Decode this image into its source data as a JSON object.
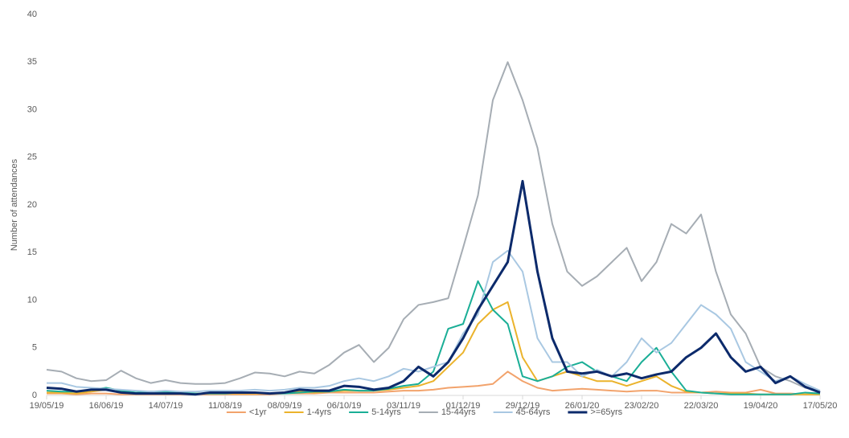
{
  "chart_data": {
    "type": "line",
    "y_label": "Number of attendances",
    "x": [
      "19/05/19",
      "26/05/19",
      "02/06/19",
      "09/06/19",
      "16/06/19",
      "23/06/19",
      "30/06/19",
      "07/07/19",
      "14/07/19",
      "21/07/19",
      "28/07/19",
      "04/08/19",
      "11/08/19",
      "18/08/19",
      "25/08/19",
      "01/09/19",
      "08/09/19",
      "15/09/19",
      "22/09/19",
      "29/09/19",
      "06/10/19",
      "13/10/19",
      "20/10/19",
      "27/10/19",
      "03/11/19",
      "10/11/19",
      "17/11/19",
      "24/11/19",
      "01/12/19",
      "08/12/19",
      "15/12/19",
      "22/12/19",
      "29/12/19",
      "05/01/20",
      "12/01/20",
      "19/01/20",
      "26/01/20",
      "02/02/20",
      "09/02/20",
      "16/02/20",
      "23/02/20",
      "01/03/20",
      "08/03/20",
      "15/03/20",
      "22/03/20",
      "29/03/20",
      "05/04/20",
      "12/04/20",
      "19/04/20",
      "26/04/20",
      "03/05/20",
      "10/05/20",
      "17/05/20"
    ],
    "series": [
      {
        "name": "<1yr",
        "color": "#f2a36c",
        "values": [
          0.2,
          0.2,
          0.1,
          0.2,
          0.2,
          0.1,
          0.1,
          0.1,
          0.1,
          0.1,
          0.1,
          0.1,
          0.1,
          0.1,
          0.1,
          0.1,
          0.2,
          0.2,
          0.2,
          0.3,
          0.3,
          0.3,
          0.3,
          0.4,
          0.5,
          0.5,
          0.6,
          0.8,
          0.9,
          1.0,
          1.2,
          2.5,
          1.5,
          0.8,
          0.5,
          0.6,
          0.7,
          0.6,
          0.5,
          0.4,
          0.5,
          0.5,
          0.3,
          0.3,
          0.3,
          0.4,
          0.3,
          0.3,
          0.6,
          0.2,
          0.2,
          0.1,
          0.1
        ]
      },
      {
        "name": "1-4yrs",
        "color": "#ebb32c",
        "values": [
          0.3,
          0.3,
          0.2,
          0.4,
          0.6,
          0.3,
          0.2,
          0.2,
          0.2,
          0.2,
          0.2,
          0.2,
          0.2,
          0.2,
          0.2,
          0.2,
          0.3,
          0.4,
          0.3,
          0.4,
          0.5,
          0.5,
          0.5,
          0.6,
          0.8,
          1.0,
          1.5,
          3.0,
          4.5,
          7.5,
          9.0,
          9.8,
          4.0,
          1.5,
          2.0,
          2.5,
          2.0,
          1.5,
          1.5,
          1.0,
          1.5,
          2.0,
          1.0,
          0.4,
          0.3,
          0.2,
          0.2,
          0.2,
          0.1,
          0.1,
          0.1,
          0.1,
          0.1
        ]
      },
      {
        "name": "5-14yrs",
        "color": "#1aae96",
        "values": [
          0.5,
          0.4,
          0.4,
          0.6,
          0.8,
          0.5,
          0.3,
          0.4,
          0.4,
          0.3,
          0.2,
          0.2,
          0.2,
          0.3,
          0.3,
          0.2,
          0.2,
          0.3,
          0.4,
          0.4,
          0.6,
          0.5,
          0.5,
          0.7,
          1.0,
          1.2,
          2.5,
          7.0,
          7.5,
          12,
          9,
          7.5,
          2.0,
          1.5,
          2.0,
          3.0,
          3.5,
          2.5,
          2.0,
          1.5,
          3.5,
          5.0,
          2.5,
          0.5,
          0.3,
          0.2,
          0.1,
          0.1,
          0.1,
          0.1,
          0.1,
          0.3,
          0.2
        ]
      },
      {
        "name": "15-44yrs",
        "color": "#a6adb4",
        "values": [
          2.7,
          2.5,
          1.8,
          1.5,
          1.6,
          2.6,
          1.8,
          1.3,
          1.6,
          1.3,
          1.2,
          1.2,
          1.3,
          1.8,
          2.4,
          2.3,
          2.0,
          2.5,
          2.3,
          3.2,
          4.5,
          5.3,
          3.5,
          5.0,
          8.0,
          9.5,
          9.8,
          10.2,
          15.5,
          21,
          31,
          35,
          31,
          26,
          18,
          13,
          11.5,
          12.5,
          14,
          15.5,
          12,
          14,
          18,
          17,
          19,
          13,
          8.5,
          6.5,
          3,
          2.0,
          1.5,
          0.8,
          0.5
        ]
      },
      {
        "name": "45-64yrs",
        "color": "#a9c8e2",
        "values": [
          1.3,
          1.3,
          0.9,
          0.8,
          0.7,
          0.6,
          0.5,
          0.4,
          0.5,
          0.4,
          0.4,
          0.5,
          0.5,
          0.5,
          0.6,
          0.5,
          0.6,
          0.8,
          0.8,
          1.0,
          1.5,
          1.8,
          1.5,
          2.0,
          2.8,
          2.5,
          3.0,
          3.5,
          6.5,
          8.5,
          14,
          15.2,
          13,
          6,
          3.5,
          3.5,
          2.0,
          2.7,
          2.0,
          3.5,
          6.0,
          4.5,
          5.5,
          7.5,
          9.5,
          8.5,
          7.0,
          3.5,
          2.5,
          1.5,
          2.0,
          1.2,
          0.5
        ]
      },
      {
        "name": ">=65yrs",
        "color": "#0c2a6b",
        "values": [
          0.8,
          0.7,
          0.4,
          0.6,
          0.6,
          0.3,
          0.2,
          0.2,
          0.2,
          0.2,
          0.1,
          0.3,
          0.3,
          0.3,
          0.3,
          0.2,
          0.3,
          0.6,
          0.5,
          0.5,
          1.0,
          0.9,
          0.6,
          0.8,
          1.5,
          3.0,
          2.0,
          3.5,
          6.0,
          9.0,
          11.5,
          14,
          22.5,
          13,
          6,
          2.5,
          2.3,
          2.5,
          2.0,
          2.3,
          1.8,
          2.2,
          2.5,
          4.0,
          5.0,
          6.5,
          4.0,
          2.5,
          3.0,
          1.3,
          2.0,
          0.9,
          0.3
        ]
      }
    ],
    "xlim": [
      "19/05/19",
      "17/05/20"
    ],
    "xticks": [
      "19/05/19",
      "16/06/19",
      "14/07/19",
      "11/08/19",
      "08/09/19",
      "06/10/19",
      "03/11/19",
      "01/12/19",
      "29/12/19",
      "26/01/20",
      "23/02/20",
      "22/03/20",
      "19/04/20",
      "17/05/20"
    ],
    "ylim": [
      0,
      40
    ],
    "yticks": [
      0,
      5,
      10,
      15,
      20,
      25,
      30,
      35,
      40
    ],
    "legend": "bottom"
  }
}
